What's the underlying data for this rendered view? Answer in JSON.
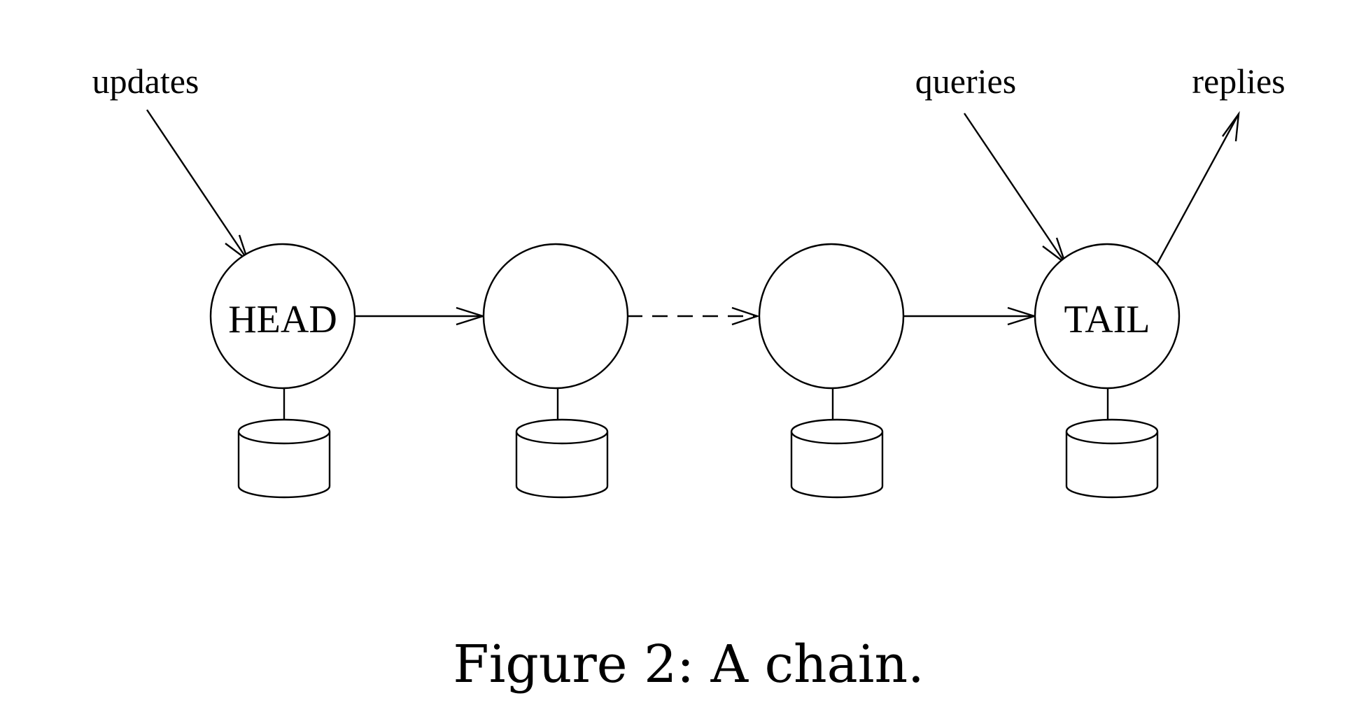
{
  "labels": {
    "updates": "updates",
    "queries": "queries",
    "replies": "replies"
  },
  "nodes": [
    {
      "id": "head",
      "label": "HEAD"
    },
    {
      "id": "node-2",
      "label": ""
    },
    {
      "id": "node-3",
      "label": ""
    },
    {
      "id": "tail",
      "label": "TAIL"
    }
  ],
  "caption": "Figure 2: A chain."
}
